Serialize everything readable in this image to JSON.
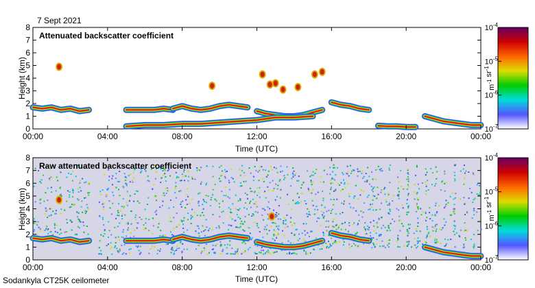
{
  "date": "7 Sept 2021",
  "footer": "Sodankyla CT25K ceilometer",
  "chart_data": [
    {
      "type": "heatmap",
      "title": "Attenuated backscatter coefficient",
      "xlabel": "Time (UTC)",
      "ylabel": "Height (km)",
      "xticks": [
        "00:00",
        "04:00",
        "08:00",
        "12:00",
        "16:00",
        "20:00",
        "00:00"
      ],
      "yticks": [
        "0",
        "1",
        "2",
        "3",
        "4",
        "5",
        "6",
        "7",
        "8"
      ],
      "xlim": [
        0,
        24
      ],
      "ylim": [
        0,
        8
      ],
      "colorbar": {
        "scale": "log",
        "range": [
          1e-07,
          0.0001
        ],
        "ticks": [
          "10-7",
          "10-6",
          "10-5",
          "10-4"
        ],
        "unit": "m-1 sr-1",
        "colors": [
          "#ffffff",
          "#5555ff",
          "#00dddd",
          "#00cc00",
          "#dddd00",
          "#ff6600",
          "#cc0000",
          "#660066"
        ]
      },
      "features": [
        {
          "type": "layer",
          "x": [
            0,
            0.5,
            1,
            1.5,
            2,
            2.5,
            3
          ],
          "y": [
            1.7,
            1.6,
            1.7,
            1.5,
            1.6,
            1.4,
            1.5
          ]
        },
        {
          "type": "layer",
          "x": [
            5,
            5.5,
            6,
            6.5,
            7,
            7.5
          ],
          "y": [
            1.5,
            1.5,
            1.5,
            1.5,
            1.6,
            1.5
          ]
        },
        {
          "type": "layer",
          "x": [
            7.5,
            8,
            8.5,
            9,
            9.5,
            10,
            10.5,
            11,
            11.5
          ],
          "y": [
            1.6,
            1.8,
            1.6,
            1.5,
            1.6,
            1.8,
            1.9,
            1.8,
            1.7
          ]
        },
        {
          "type": "layer",
          "x": [
            12,
            12.5,
            13,
            13.5,
            14,
            14.5,
            15,
            15.5
          ],
          "y": [
            1.4,
            1.2,
            1.1,
            1.0,
            1.0,
            1.1,
            1.3,
            1.5
          ]
        },
        {
          "type": "layer",
          "x": [
            16,
            16.5,
            17,
            17.5,
            18
          ],
          "y": [
            2.1,
            1.9,
            1.8,
            1.6,
            1.5
          ]
        },
        {
          "type": "layer",
          "x": [
            5,
            6,
            7,
            8,
            9,
            10,
            11,
            12,
            13,
            14,
            15
          ],
          "y": [
            0.2,
            0.3,
            0.3,
            0.4,
            0.4,
            0.5,
            0.6,
            0.7,
            0.9,
            0.9,
            1.0
          ]
        },
        {
          "type": "layer",
          "x": [
            18.5,
            19,
            19.5,
            20,
            20.5
          ],
          "y": [
            0.25,
            0.2,
            0.2,
            0.15,
            0.15
          ]
        },
        {
          "type": "layer",
          "x": [
            21,
            21.5,
            22,
            22.5,
            23,
            23.5,
            24
          ],
          "y": [
            1.0,
            0.8,
            0.6,
            0.5,
            0.4,
            0.3,
            0.3
          ]
        },
        {
          "type": "spot",
          "x": 1.4,
          "y": 4.9
        },
        {
          "type": "spot",
          "x": 9.6,
          "y": 3.4
        },
        {
          "type": "spot",
          "x": 12.3,
          "y": 4.3
        },
        {
          "type": "spot",
          "x": 12.7,
          "y": 3.5
        },
        {
          "type": "spot",
          "x": 13.0,
          "y": 3.6
        },
        {
          "type": "spot",
          "x": 13.4,
          "y": 3.1
        },
        {
          "type": "spot",
          "x": 14.2,
          "y": 3.3
        },
        {
          "type": "spot",
          "x": 15.1,
          "y": 4.3
        },
        {
          "type": "spot",
          "x": 15.5,
          "y": 4.5
        }
      ]
    },
    {
      "type": "heatmap",
      "title": "Raw attenuated backscatter coefficient",
      "xlabel": "Time (UTC)",
      "ylabel": "Height (km)",
      "xticks": [
        "00:00",
        "04:00",
        "08:00",
        "12:00",
        "16:00",
        "20:00",
        "00:00"
      ],
      "yticks": [
        "0",
        "1",
        "2",
        "3",
        "4",
        "5",
        "6",
        "7",
        "8"
      ],
      "xlim": [
        0,
        24
      ],
      "ylim": [
        0,
        8
      ],
      "colorbar": {
        "scale": "log",
        "range": [
          1e-07,
          0.0001
        ],
        "ticks": [
          "10-7",
          "10-6",
          "10-5",
          "10-4"
        ],
        "unit": "m-1 sr-1",
        "colors": [
          "#ffffff",
          "#5555ff",
          "#00dddd",
          "#00cc00",
          "#dddd00",
          "#ff6600",
          "#cc0000",
          "#660066"
        ]
      },
      "features": [
        {
          "type": "noise-region",
          "x": [
            0,
            3
          ],
          "y": [
            2,
            7.5
          ],
          "level": "low"
        },
        {
          "type": "noise-region",
          "x": [
            3.5,
            15.5
          ],
          "y": [
            0.5,
            7.5
          ],
          "level": "high"
        },
        {
          "type": "noise-region",
          "x": [
            15.5,
            24
          ],
          "y": [
            1,
            7.5
          ],
          "level": "banded"
        },
        {
          "type": "layer",
          "x": [
            0,
            0.5,
            1,
            1.5,
            2,
            2.5,
            3
          ],
          "y": [
            1.7,
            1.6,
            1.7,
            1.5,
            1.6,
            1.4,
            1.5
          ]
        },
        {
          "type": "layer",
          "x": [
            5,
            5.5,
            6,
            6.5,
            7,
            7.5
          ],
          "y": [
            1.5,
            1.5,
            1.5,
            1.5,
            1.6,
            1.5
          ]
        },
        {
          "type": "layer",
          "x": [
            7.5,
            8,
            8.5,
            9,
            9.5,
            10,
            10.5,
            11,
            11.5
          ],
          "y": [
            1.6,
            1.8,
            1.6,
            1.5,
            1.6,
            1.8,
            1.9,
            1.8,
            1.7
          ]
        },
        {
          "type": "layer",
          "x": [
            12,
            12.5,
            13,
            13.5,
            14,
            14.5,
            15,
            15.5
          ],
          "y": [
            1.4,
            1.2,
            1.1,
            1.0,
            1.0,
            1.1,
            1.3,
            1.5
          ]
        },
        {
          "type": "layer",
          "x": [
            16,
            16.5,
            17,
            17.5,
            18
          ],
          "y": [
            2.1,
            1.9,
            1.8,
            1.6,
            1.5
          ]
        },
        {
          "type": "layer",
          "x": [
            21,
            21.5,
            22,
            22.5,
            23,
            23.5,
            24
          ],
          "y": [
            1.0,
            0.8,
            0.6,
            0.5,
            0.4,
            0.3,
            0.3
          ]
        },
        {
          "type": "spot",
          "x": 1.4,
          "y": 4.7
        },
        {
          "type": "spot",
          "x": 12.8,
          "y": 3.4
        }
      ]
    }
  ]
}
